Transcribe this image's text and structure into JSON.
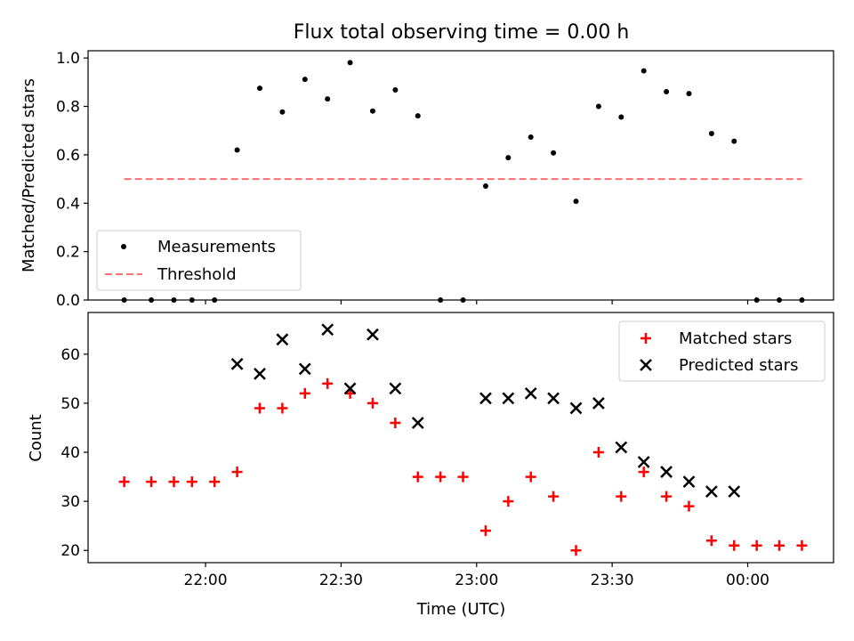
{
  "chart_data": [
    {
      "type": "scatter",
      "title": "Flux total observing time = 0.00 h",
      "xlabel": "",
      "ylabel": "Matched/Predicted stars",
      "ylim": [
        0,
        1.03
      ],
      "yticks": [
        "0.0",
        "0.2",
        "0.4",
        "0.6",
        "0.8",
        "1.0"
      ],
      "grid": false,
      "legend_position": "lower-left",
      "series": [
        {
          "name": "Measurements",
          "marker": "dot",
          "color": "#000000",
          "points": [
            [
              "21:42",
              0.0
            ],
            [
              "21:48",
              0.0
            ],
            [
              "21:53",
              0.0
            ],
            [
              "21:57",
              0.0
            ],
            [
              "22:02",
              0.0
            ],
            [
              "22:07",
              0.62
            ],
            [
              "22:12",
              0.875
            ],
            [
              "22:17",
              0.777
            ],
            [
              "22:22",
              0.912
            ],
            [
              "22:27",
              0.831
            ],
            [
              "22:32",
              0.981
            ],
            [
              "22:37",
              0.781
            ],
            [
              "22:42",
              0.868
            ],
            [
              "22:47",
              0.761
            ],
            [
              "22:52",
              0.0
            ],
            [
              "22:57",
              0.0
            ],
            [
              "23:02",
              0.471
            ],
            [
              "23:07",
              0.588
            ],
            [
              "23:12",
              0.673
            ],
            [
              "23:17",
              0.608
            ],
            [
              "23:22",
              0.408
            ],
            [
              "23:27",
              0.8
            ],
            [
              "23:32",
              0.756
            ],
            [
              "23:37",
              0.947
            ],
            [
              "23:42",
              0.861
            ],
            [
              "23:47",
              0.853
            ],
            [
              "23:52",
              0.688
            ],
            [
              "23:57",
              0.656
            ],
            [
              "00:02",
              0.0
            ],
            [
              "00:07",
              0.0
            ],
            [
              "00:12",
              0.0
            ]
          ]
        },
        {
          "name": "Threshold",
          "marker": "dashed-line",
          "color": "#ff7070",
          "points": [
            [
              "21:42",
              0.5
            ],
            [
              "00:12",
              0.5
            ]
          ]
        }
      ]
    },
    {
      "type": "scatter",
      "title": "",
      "xlabel": "Time (UTC)",
      "ylabel": "Count",
      "ylim": [
        17.5,
        68.5
      ],
      "yticks": [
        "20",
        "30",
        "40",
        "50",
        "60"
      ],
      "xticks": [
        "22:00",
        "22:30",
        "23:00",
        "23:30",
        "00:00"
      ],
      "grid": false,
      "legend_position": "upper-right",
      "series": [
        {
          "name": "Matched stars",
          "marker": "plus",
          "color": "#ff0000",
          "points": [
            [
              "21:42",
              34
            ],
            [
              "21:48",
              34
            ],
            [
              "21:53",
              34
            ],
            [
              "21:57",
              34
            ],
            [
              "22:02",
              34
            ],
            [
              "22:07",
              36
            ],
            [
              "22:12",
              49
            ],
            [
              "22:17",
              49
            ],
            [
              "22:22",
              52
            ],
            [
              "22:27",
              54
            ],
            [
              "22:32",
              52
            ],
            [
              "22:37",
              50
            ],
            [
              "22:42",
              46
            ],
            [
              "22:47",
              35
            ],
            [
              "22:52",
              35
            ],
            [
              "22:57",
              35
            ],
            [
              "23:02",
              24
            ],
            [
              "23:07",
              30
            ],
            [
              "23:12",
              35
            ],
            [
              "23:17",
              31
            ],
            [
              "23:22",
              20
            ],
            [
              "23:27",
              40
            ],
            [
              "23:32",
              31
            ],
            [
              "23:37",
              36
            ],
            [
              "23:42",
              31
            ],
            [
              "23:47",
              29
            ],
            [
              "23:52",
              22
            ],
            [
              "23:57",
              21
            ],
            [
              "00:02",
              21
            ],
            [
              "00:07",
              21
            ],
            [
              "00:12",
              21
            ]
          ]
        },
        {
          "name": "Predicted stars",
          "marker": "x",
          "color": "#000000",
          "points": [
            [
              "22:07",
              58
            ],
            [
              "22:12",
              56
            ],
            [
              "22:17",
              63
            ],
            [
              "22:22",
              57
            ],
            [
              "22:27",
              65
            ],
            [
              "22:32",
              53
            ],
            [
              "22:37",
              64
            ],
            [
              "22:42",
              53
            ],
            [
              "22:47",
              46
            ],
            [
              "23:02",
              51
            ],
            [
              "23:07",
              51
            ],
            [
              "23:12",
              52
            ],
            [
              "23:17",
              51
            ],
            [
              "23:22",
              49
            ],
            [
              "23:27",
              50
            ],
            [
              "23:32",
              41
            ],
            [
              "23:37",
              38
            ],
            [
              "23:42",
              36
            ],
            [
              "23:47",
              34
            ],
            [
              "23:52",
              32
            ],
            [
              "23:57",
              32
            ]
          ]
        }
      ]
    }
  ]
}
